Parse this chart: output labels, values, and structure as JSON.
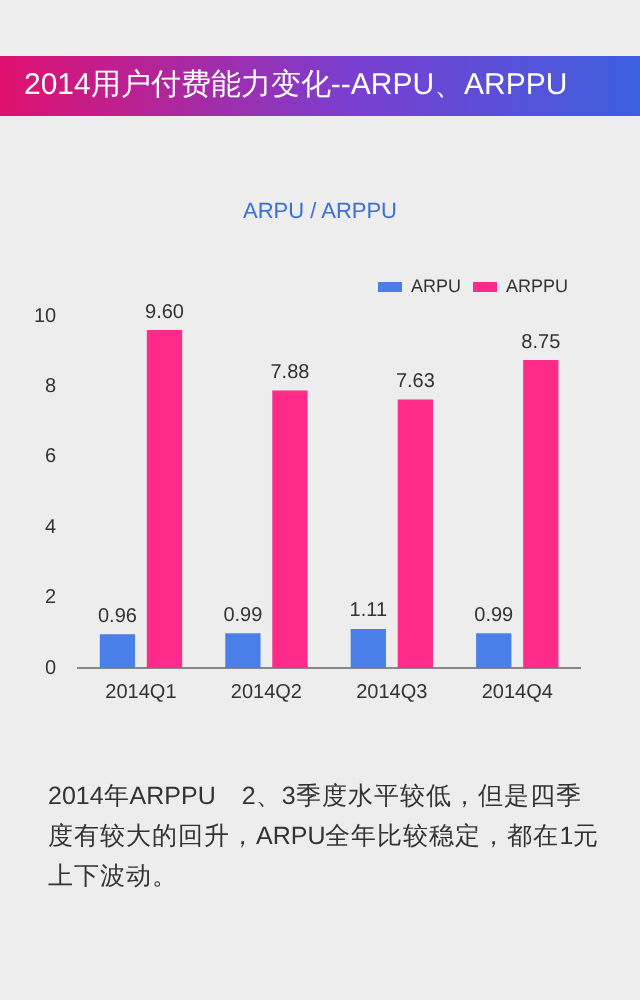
{
  "chart_data": {
    "type": "bar",
    "title": "2014用户付费能力变化--ARPU、ARPPU",
    "subtitle": "ARPU / ARPPU",
    "categories": [
      "2014Q1",
      "2014Q2",
      "2014Q3",
      "2014Q4"
    ],
    "series": [
      {
        "name": "ARPU",
        "color": "#4a7ee8",
        "values": [
          0.96,
          0.99,
          1.11,
          0.99
        ],
        "value_labels": [
          "0.96",
          "0.99",
          "1.11",
          "0.99"
        ]
      },
      {
        "name": "ARPPU",
        "color": "#ff2a8a",
        "values": [
          9.6,
          7.88,
          7.63,
          8.75
        ],
        "value_labels": [
          "9.60",
          "7.88",
          "7.63",
          "8.75"
        ]
      }
    ],
    "ylim": [
      0,
      10
    ],
    "yticks": [
      0,
      2,
      4,
      6,
      8,
      10
    ],
    "grid": false,
    "legend": "top right",
    "annotations": [
      "2014年ARPPU　2、3季度水平较低，但是四季度有较大的回升，ARPU全年比较稳定，都在1元上下波动。"
    ]
  }
}
